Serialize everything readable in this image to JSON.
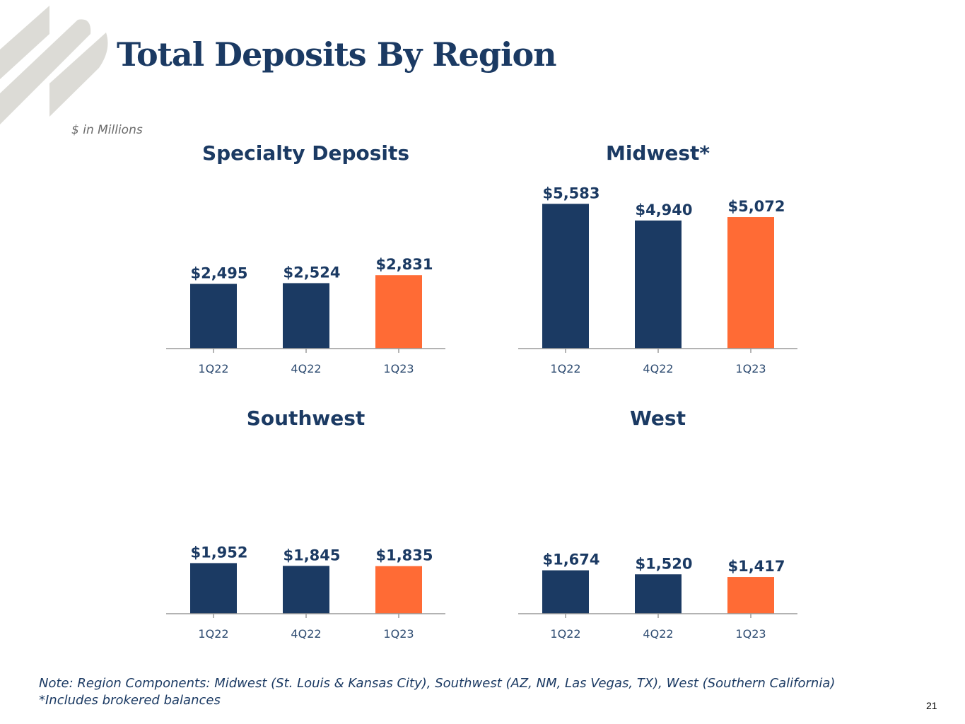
{
  "slide": {
    "title": "Total Deposits By Region",
    "units_note": "$ in Millions",
    "footnote_line1": "Note: Region Components: Midwest (St. Louis & Kansas City), Southwest (AZ, NM, Las Vegas, TX), West (Southern California)",
    "footnote_line2": "*Includes brokered balances",
    "page_number": "21"
  },
  "colors": {
    "prior": "#1b3a63",
    "current": "#ff6b35",
    "axis": "#9a9a9a",
    "tick_label": "#2c4a70",
    "logo_stripe": "#dcdbd6"
  },
  "chart_data": [
    {
      "type": "bar",
      "title": "Specialty Deposits",
      "categories": [
        "1Q22",
        "4Q22",
        "1Q23"
      ],
      "values": [
        2495,
        2524,
        2831
      ],
      "value_labels": [
        "$2,495",
        "$2,524",
        "$2,831"
      ],
      "highlight_index": 2,
      "ylim": [
        0,
        6000
      ],
      "xlabel": "",
      "ylabel": ""
    },
    {
      "type": "bar",
      "title": "Midwest*",
      "categories": [
        "1Q22",
        "4Q22",
        "1Q23"
      ],
      "values": [
        5583,
        4940,
        5072
      ],
      "value_labels": [
        "$5,583",
        "$4,940",
        "$5,072"
      ],
      "highlight_index": 2,
      "ylim": [
        0,
        6000
      ],
      "xlabel": "",
      "ylabel": ""
    },
    {
      "type": "bar",
      "title": "Southwest",
      "categories": [
        "1Q22",
        "4Q22",
        "1Q23"
      ],
      "values": [
        1952,
        1845,
        1835
      ],
      "value_labels": [
        "$1,952",
        "$1,845",
        "$1,835"
      ],
      "highlight_index": 2,
      "ylim": [
        0,
        6000
      ],
      "xlabel": "",
      "ylabel": ""
    },
    {
      "type": "bar",
      "title": "West",
      "categories": [
        "1Q22",
        "4Q22",
        "1Q23"
      ],
      "values": [
        1674,
        1520,
        1417
      ],
      "value_labels": [
        "$1,674",
        "$1,520",
        "$1,417"
      ],
      "highlight_index": 2,
      "ylim": [
        0,
        6000
      ],
      "xlabel": "",
      "ylabel": ""
    }
  ]
}
